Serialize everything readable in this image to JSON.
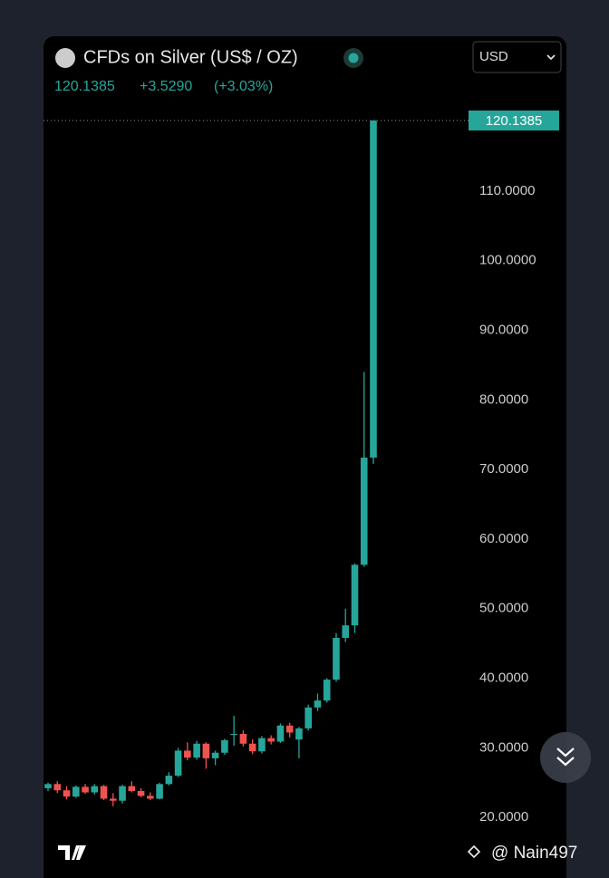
{
  "chart_data": {
    "type": "candlestick",
    "title": "CFDs on Silver (US$ / OZ)",
    "price": 120.1385,
    "change": "+3.5290",
    "change_percent": "(+3.03%)",
    "currency": "USD",
    "watermark": "@ Nain497",
    "up_color": "#26a69a",
    "down_color": "#ef5350",
    "ylim": [
      11.3,
      123
    ],
    "yticks": [
      {
        "value": 20,
        "label": "20.0000"
      },
      {
        "value": 30,
        "label": "30.0000"
      },
      {
        "value": 40,
        "label": "40.0000"
      },
      {
        "value": 50,
        "label": "50.0000"
      },
      {
        "value": 60,
        "label": "60.0000"
      },
      {
        "value": 70,
        "label": "70.0000"
      },
      {
        "value": 80,
        "label": "80.0000"
      },
      {
        "value": 90,
        "label": "90.0000"
      },
      {
        "value": 100,
        "label": "100.0000"
      },
      {
        "value": 110,
        "label": "110.0000"
      }
    ],
    "open": [
      24.2,
      24.8,
      23.9,
      23.0,
      24.4,
      23.6,
      24.5,
      22.7,
      22.4,
      24.5,
      23.8,
      23.1,
      22.7,
      24.8,
      26.0,
      29.6,
      28.6,
      30.6,
      28.5,
      29.3,
      32.0,
      32.0,
      30.6,
      29.5,
      31.4,
      30.9,
      33.2,
      31.2,
      32.8,
      35.8,
      36.8,
      39.8,
      45.8,
      47.6,
      56.3,
      71.7
    ],
    "high": [
      25.0,
      25.2,
      24.5,
      24.6,
      24.8,
      24.8,
      24.7,
      23.5,
      24.7,
      25.2,
      24.2,
      23.6,
      25.0,
      26.5,
      30.0,
      30.8,
      31.0,
      30.8,
      29.6,
      31.3,
      34.6,
      32.5,
      31.2,
      31.7,
      31.8,
      33.5,
      33.6,
      33.0,
      36.2,
      37.8,
      40.0,
      46.5,
      50.0,
      56.5,
      84.0,
      120.1385
    ],
    "low": [
      23.8,
      23.5,
      22.6,
      22.8,
      23.4,
      23.3,
      22.5,
      21.6,
      22.0,
      23.6,
      22.9,
      22.5,
      22.6,
      24.6,
      25.8,
      28.2,
      28.3,
      27.0,
      27.5,
      29.0,
      30.3,
      30.2,
      29.1,
      29.2,
      30.5,
      30.7,
      31.5,
      28.5,
      32.5,
      35.3,
      36.5,
      39.5,
      45.2,
      46.5,
      56.0,
      70.8
    ],
    "close": [
      24.8,
      23.9,
      23.0,
      24.4,
      23.6,
      24.5,
      22.7,
      22.4,
      24.5,
      23.8,
      23.1,
      22.7,
      24.8,
      26.0,
      29.6,
      28.6,
      30.6,
      28.5,
      29.3,
      31.1,
      32.0,
      30.6,
      29.5,
      31.4,
      30.9,
      33.2,
      32.2,
      32.8,
      35.8,
      36.8,
      39.8,
      45.8,
      47.6,
      56.3,
      71.7,
      120.1385
    ]
  }
}
